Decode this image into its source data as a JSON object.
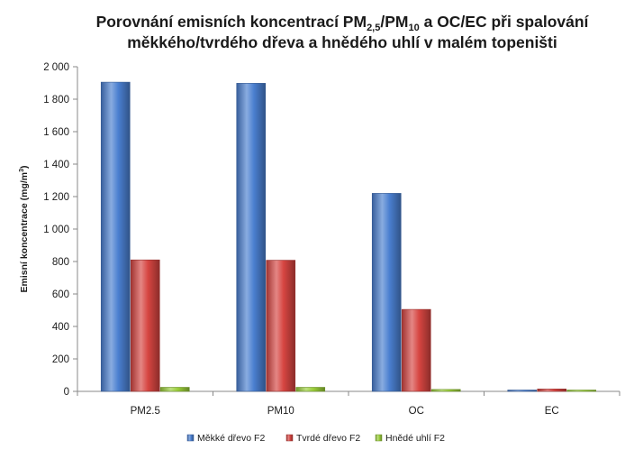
{
  "chart_data": {
    "type": "bar",
    "title": {
      "line1_a": "Porovnání emisních koncentrací PM",
      "line1_sub1": "2,5",
      "line1_b": "/PM",
      "line1_sub2": "10",
      "line1_c": " a OC/EC při spalování",
      "line2": "měkkého/tvrdého dřeva a hnědého uhlí v malém topeništi"
    },
    "ylabel": {
      "text": "Emisní koncentrace  (mg/m",
      "sup": "3",
      "end": ")"
    },
    "xlabel": "",
    "ylim": [
      0,
      2000
    ],
    "yticks": [
      0,
      200,
      400,
      600,
      800,
      1000,
      1200,
      1400,
      1600,
      1800,
      2000
    ],
    "ytick_labels": [
      "0",
      "200",
      "400",
      "600",
      "800",
      "1 000",
      "1 200",
      "1 400",
      "1 600",
      "1 800",
      "2 000"
    ],
    "categories": [
      "PM2.5",
      "PM10",
      "OC",
      "EC"
    ],
    "series": [
      {
        "name": "Měkké dřevo F2",
        "color": "#4a7fd0",
        "values": [
          1905,
          1898,
          1220,
          8
        ]
      },
      {
        "name": "Tvrdé dřevo F2",
        "color": "#d64541",
        "values": [
          810,
          808,
          505,
          15
        ]
      },
      {
        "name": "Hnědé uhlí F2",
        "color": "#9acd3a",
        "values": [
          25,
          25,
          12,
          2
        ]
      }
    ],
    "grid": false,
    "legend": "bottom"
  }
}
